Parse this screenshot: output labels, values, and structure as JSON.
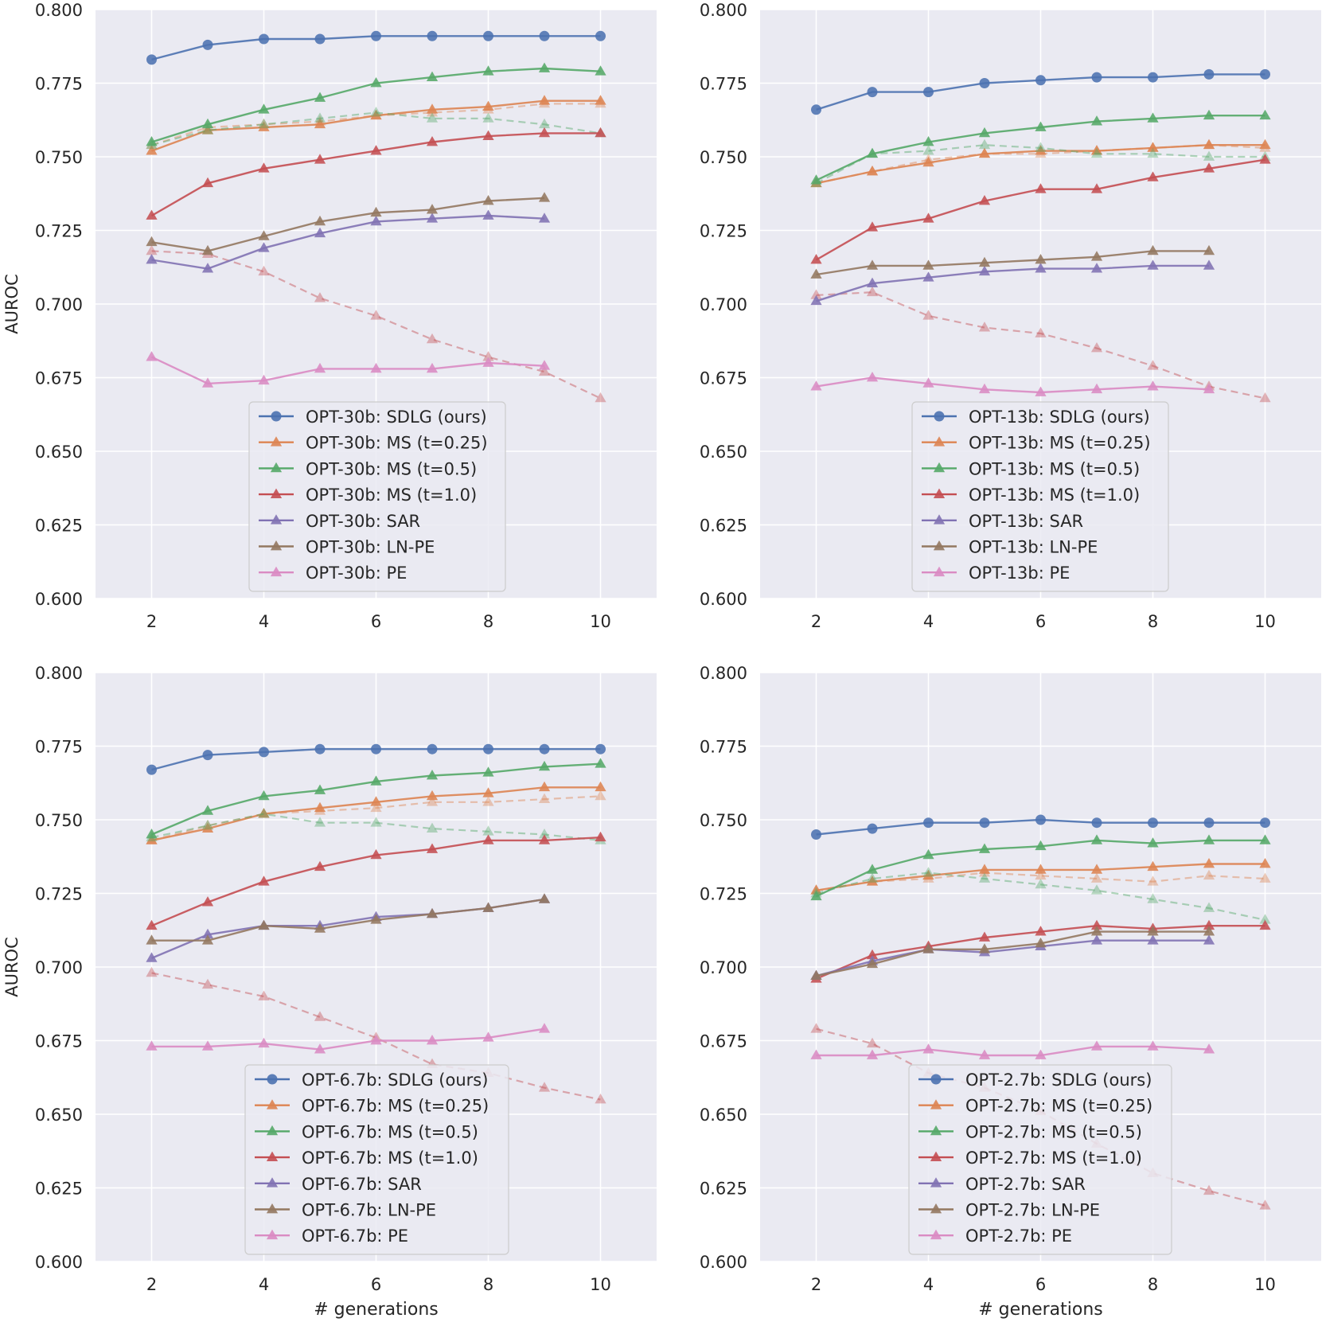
{
  "colors": {
    "background": "#EAEAF2",
    "grid": "#FFFFFF",
    "SDLG": "#4C72B0",
    "MS_025": "#DD8452",
    "MS_05": "#55A868",
    "MS_10": "#C44E52",
    "SAR": "#8172B3",
    "LN_PE": "#937860",
    "PE": "#DA8BC3"
  },
  "chart_data": [
    {
      "type": "line",
      "xlabel": "",
      "ylabel": "AUROC",
      "xlim": [
        1,
        11
      ],
      "ylim": [
        0.6,
        0.8
      ],
      "xticks": [
        "2",
        "4",
        "6",
        "8",
        "10"
      ],
      "yticks": [
        "0.600",
        "0.625",
        "0.650",
        "0.675",
        "0.700",
        "0.725",
        "0.750",
        "0.775",
        "0.800"
      ],
      "grid": true,
      "legend_position": "bottom-center",
      "series": [
        {
          "name": "OPT-30b: SDLG (ours)",
          "color_key": "SDLG",
          "marker": "circle",
          "x": [
            2,
            3,
            4,
            5,
            6,
            7,
            8,
            9,
            10
          ],
          "values": [
            0.783,
            0.788,
            0.79,
            0.79,
            0.791,
            0.791,
            0.791,
            0.791,
            0.791
          ]
        },
        {
          "name": "OPT-30b: MS (t=0.25)",
          "color_key": "MS_025",
          "marker": "triangle",
          "x": [
            2,
            3,
            4,
            5,
            6,
            7,
            8,
            9,
            10
          ],
          "values": [
            0.752,
            0.759,
            0.76,
            0.761,
            0.764,
            0.766,
            0.767,
            0.769,
            0.769
          ],
          "dashed": [
            0.754,
            0.76,
            0.761,
            0.762,
            0.764,
            0.765,
            0.766,
            0.768,
            0.768
          ]
        },
        {
          "name": "OPT-30b: MS (t=0.5)",
          "color_key": "MS_05",
          "marker": "triangle",
          "x": [
            2,
            3,
            4,
            5,
            6,
            7,
            8,
            9,
            10
          ],
          "values": [
            0.755,
            0.761,
            0.766,
            0.77,
            0.775,
            0.777,
            0.779,
            0.78,
            0.779
          ],
          "dashed": [
            0.754,
            0.759,
            0.761,
            0.763,
            0.765,
            0.763,
            0.763,
            0.761,
            0.758
          ]
        },
        {
          "name": "OPT-30b: MS (t=1.0)",
          "color_key": "MS_10",
          "marker": "triangle",
          "x": [
            2,
            3,
            4,
            5,
            6,
            7,
            8,
            9,
            10
          ],
          "values": [
            0.73,
            0.741,
            0.746,
            0.749,
            0.752,
            0.755,
            0.757,
            0.758,
            0.758
          ],
          "dashed": [
            0.718,
            0.717,
            0.711,
            0.702,
            0.696,
            0.688,
            0.682,
            0.677,
            0.668
          ]
        },
        {
          "name": "OPT-30b: SAR",
          "color_key": "SAR",
          "marker": "triangle",
          "x": [
            2,
            3,
            4,
            5,
            6,
            7,
            8,
            9
          ],
          "values": [
            0.715,
            0.712,
            0.719,
            0.724,
            0.728,
            0.729,
            0.73,
            0.729
          ]
        },
        {
          "name": "OPT-30b: LN-PE",
          "color_key": "LN_PE",
          "marker": "triangle",
          "x": [
            2,
            3,
            4,
            5,
            6,
            7,
            8,
            9
          ],
          "values": [
            0.721,
            0.718,
            0.723,
            0.728,
            0.731,
            0.732,
            0.735,
            0.736
          ]
        },
        {
          "name": "OPT-30b: PE",
          "color_key": "PE",
          "marker": "triangle",
          "x": [
            2,
            3,
            4,
            5,
            6,
            7,
            8,
            9
          ],
          "values": [
            0.682,
            0.673,
            0.674,
            0.678,
            0.678,
            0.678,
            0.68,
            0.679
          ]
        }
      ]
    },
    {
      "type": "line",
      "xlabel": "",
      "ylabel": "",
      "xlim": [
        1,
        11
      ],
      "ylim": [
        0.6,
        0.8
      ],
      "xticks": [
        "2",
        "4",
        "6",
        "8",
        "10"
      ],
      "yticks": [
        "0.600",
        "0.625",
        "0.650",
        "0.675",
        "0.700",
        "0.725",
        "0.750",
        "0.775",
        "0.800"
      ],
      "grid": true,
      "legend_position": "bottom-center",
      "series": [
        {
          "name": "OPT-13b: SDLG (ours)",
          "color_key": "SDLG",
          "marker": "circle",
          "x": [
            2,
            3,
            4,
            5,
            6,
            7,
            8,
            9,
            10
          ],
          "values": [
            0.766,
            0.772,
            0.772,
            0.775,
            0.776,
            0.777,
            0.777,
            0.778,
            0.778
          ]
        },
        {
          "name": "OPT-13b: MS (t=0.25)",
          "color_key": "MS_025",
          "marker": "triangle",
          "x": [
            2,
            3,
            4,
            5,
            6,
            7,
            8,
            9,
            10
          ],
          "values": [
            0.741,
            0.745,
            0.748,
            0.751,
            0.752,
            0.752,
            0.753,
            0.754,
            0.754
          ],
          "dashed": [
            0.741,
            0.745,
            0.749,
            0.751,
            0.751,
            0.752,
            0.753,
            0.754,
            0.753
          ]
        },
        {
          "name": "OPT-13b: MS (t=0.5)",
          "color_key": "MS_05",
          "marker": "triangle",
          "x": [
            2,
            3,
            4,
            5,
            6,
            7,
            8,
            9,
            10
          ],
          "values": [
            0.742,
            0.751,
            0.755,
            0.758,
            0.76,
            0.762,
            0.763,
            0.764,
            0.764
          ],
          "dashed": [
            0.741,
            0.751,
            0.752,
            0.754,
            0.753,
            0.751,
            0.751,
            0.75,
            0.75
          ]
        },
        {
          "name": "OPT-13b: MS (t=1.0)",
          "color_key": "MS_10",
          "marker": "triangle",
          "x": [
            2,
            3,
            4,
            5,
            6,
            7,
            8,
            9,
            10
          ],
          "values": [
            0.715,
            0.726,
            0.729,
            0.735,
            0.739,
            0.739,
            0.743,
            0.746,
            0.749
          ],
          "dashed": [
            0.703,
            0.704,
            0.696,
            0.692,
            0.69,
            0.685,
            0.679,
            0.672,
            0.668
          ]
        },
        {
          "name": "OPT-13b: SAR",
          "color_key": "SAR",
          "marker": "triangle",
          "x": [
            2,
            3,
            4,
            5,
            6,
            7,
            8,
            9
          ],
          "values": [
            0.701,
            0.707,
            0.709,
            0.711,
            0.712,
            0.712,
            0.713,
            0.713
          ]
        },
        {
          "name": "OPT-13b: LN-PE",
          "color_key": "LN_PE",
          "marker": "triangle",
          "x": [
            2,
            3,
            4,
            5,
            6,
            7,
            8,
            9
          ],
          "values": [
            0.71,
            0.713,
            0.713,
            0.714,
            0.715,
            0.716,
            0.718,
            0.718
          ]
        },
        {
          "name": "OPT-13b: PE",
          "color_key": "PE",
          "marker": "triangle",
          "x": [
            2,
            3,
            4,
            5,
            6,
            7,
            8,
            9
          ],
          "values": [
            0.672,
            0.675,
            0.673,
            0.671,
            0.67,
            0.671,
            0.672,
            0.671
          ]
        }
      ]
    },
    {
      "type": "line",
      "xlabel": "# generations",
      "ylabel": "AUROC",
      "xlim": [
        1,
        11
      ],
      "ylim": [
        0.6,
        0.8
      ],
      "xticks": [
        "2",
        "4",
        "6",
        "8",
        "10"
      ],
      "yticks": [
        "0.600",
        "0.625",
        "0.650",
        "0.675",
        "0.700",
        "0.725",
        "0.750",
        "0.775",
        "0.800"
      ],
      "grid": true,
      "legend_position": "bottom-center",
      "series": [
        {
          "name": "OPT-6.7b: SDLG (ours)",
          "color_key": "SDLG",
          "marker": "circle",
          "x": [
            2,
            3,
            4,
            5,
            6,
            7,
            8,
            9,
            10
          ],
          "values": [
            0.767,
            0.772,
            0.773,
            0.774,
            0.774,
            0.774,
            0.774,
            0.774,
            0.774
          ]
        },
        {
          "name": "OPT-6.7b: MS (t=0.25)",
          "color_key": "MS_025",
          "marker": "triangle",
          "x": [
            2,
            3,
            4,
            5,
            6,
            7,
            8,
            9,
            10
          ],
          "values": [
            0.743,
            0.747,
            0.752,
            0.754,
            0.756,
            0.758,
            0.759,
            0.761,
            0.761
          ],
          "dashed": [
            0.743,
            0.748,
            0.752,
            0.753,
            0.754,
            0.756,
            0.756,
            0.757,
            0.758
          ]
        },
        {
          "name": "OPT-6.7b: MS (t=0.5)",
          "color_key": "MS_05",
          "marker": "triangle",
          "x": [
            2,
            3,
            4,
            5,
            6,
            7,
            8,
            9,
            10
          ],
          "values": [
            0.745,
            0.753,
            0.758,
            0.76,
            0.763,
            0.765,
            0.766,
            0.768,
            0.769
          ],
          "dashed": [
            0.744,
            0.748,
            0.752,
            0.749,
            0.749,
            0.747,
            0.746,
            0.745,
            0.743
          ]
        },
        {
          "name": "OPT-6.7b: MS (t=1.0)",
          "color_key": "MS_10",
          "marker": "triangle",
          "x": [
            2,
            3,
            4,
            5,
            6,
            7,
            8,
            9,
            10
          ],
          "values": [
            0.714,
            0.722,
            0.729,
            0.734,
            0.738,
            0.74,
            0.743,
            0.743,
            0.744
          ],
          "dashed": [
            0.698,
            0.694,
            0.69,
            0.683,
            0.676,
            0.667,
            0.664,
            0.659,
            0.655
          ]
        },
        {
          "name": "OPT-6.7b: SAR",
          "color_key": "SAR",
          "marker": "triangle",
          "x": [
            2,
            3,
            4,
            5,
            6,
            7,
            8,
            9
          ],
          "values": [
            0.703,
            0.711,
            0.714,
            0.714,
            0.717,
            0.718,
            0.72,
            0.723
          ]
        },
        {
          "name": "OPT-6.7b: LN-PE",
          "color_key": "LN_PE",
          "marker": "triangle",
          "x": [
            2,
            3,
            4,
            5,
            6,
            7,
            8,
            9
          ],
          "values": [
            0.709,
            0.709,
            0.714,
            0.713,
            0.716,
            0.718,
            0.72,
            0.723
          ]
        },
        {
          "name": "OPT-6.7b: PE",
          "color_key": "PE",
          "marker": "triangle",
          "x": [
            2,
            3,
            4,
            5,
            6,
            7,
            8,
            9
          ],
          "values": [
            0.673,
            0.673,
            0.674,
            0.672,
            0.675,
            0.675,
            0.676,
            0.679
          ]
        }
      ]
    },
    {
      "type": "line",
      "xlabel": "# generations",
      "ylabel": "",
      "xlim": [
        1,
        11
      ],
      "ylim": [
        0.6,
        0.8
      ],
      "xticks": [
        "2",
        "4",
        "6",
        "8",
        "10"
      ],
      "yticks": [
        "0.600",
        "0.625",
        "0.650",
        "0.675",
        "0.700",
        "0.725",
        "0.750",
        "0.775",
        "0.800"
      ],
      "grid": true,
      "legend_position": "bottom-center",
      "series": [
        {
          "name": "OPT-2.7b: SDLG (ours)",
          "color_key": "SDLG",
          "marker": "circle",
          "x": [
            2,
            3,
            4,
            5,
            6,
            7,
            8,
            9,
            10
          ],
          "values": [
            0.745,
            0.747,
            0.749,
            0.749,
            0.75,
            0.749,
            0.749,
            0.749,
            0.749
          ]
        },
        {
          "name": "OPT-2.7b: MS (t=0.25)",
          "color_key": "MS_025",
          "marker": "triangle",
          "x": [
            2,
            3,
            4,
            5,
            6,
            7,
            8,
            9,
            10
          ],
          "values": [
            0.726,
            0.729,
            0.731,
            0.733,
            0.733,
            0.733,
            0.734,
            0.735,
            0.735
          ],
          "dashed": [
            0.726,
            0.729,
            0.73,
            0.732,
            0.731,
            0.73,
            0.729,
            0.731,
            0.73
          ]
        },
        {
          "name": "OPT-2.7b: MS (t=0.5)",
          "color_key": "MS_05",
          "marker": "triangle",
          "x": [
            2,
            3,
            4,
            5,
            6,
            7,
            8,
            9,
            10
          ],
          "values": [
            0.724,
            0.733,
            0.738,
            0.74,
            0.741,
            0.743,
            0.742,
            0.743,
            0.743
          ],
          "dashed": [
            0.725,
            0.73,
            0.732,
            0.73,
            0.728,
            0.726,
            0.723,
            0.72,
            0.716
          ]
        },
        {
          "name": "OPT-2.7b: MS (t=1.0)",
          "color_key": "MS_10",
          "marker": "triangle",
          "x": [
            2,
            3,
            4,
            5,
            6,
            7,
            8,
            9,
            10
          ],
          "values": [
            0.696,
            0.704,
            0.707,
            0.71,
            0.712,
            0.714,
            0.713,
            0.714,
            0.714
          ],
          "dashed": [
            0.679,
            0.674,
            0.664,
            0.659,
            0.651,
            0.64,
            0.63,
            0.624,
            0.619
          ]
        },
        {
          "name": "OPT-2.7b: SAR",
          "color_key": "SAR",
          "marker": "triangle",
          "x": [
            2,
            3,
            4,
            5,
            6,
            7,
            8,
            9
          ],
          "values": [
            0.697,
            0.702,
            0.706,
            0.705,
            0.707,
            0.709,
            0.709,
            0.709
          ]
        },
        {
          "name": "OPT-2.7b: LN-PE",
          "color_key": "LN_PE",
          "marker": "triangle",
          "x": [
            2,
            3,
            4,
            5,
            6,
            7,
            8,
            9
          ],
          "values": [
            0.697,
            0.701,
            0.706,
            0.706,
            0.708,
            0.712,
            0.712,
            0.712
          ]
        },
        {
          "name": "OPT-2.7b: PE",
          "color_key": "PE",
          "marker": "triangle",
          "x": [
            2,
            3,
            4,
            5,
            6,
            7,
            8,
            9
          ],
          "values": [
            0.67,
            0.67,
            0.672,
            0.67,
            0.67,
            0.673,
            0.673,
            0.672
          ]
        }
      ]
    }
  ]
}
